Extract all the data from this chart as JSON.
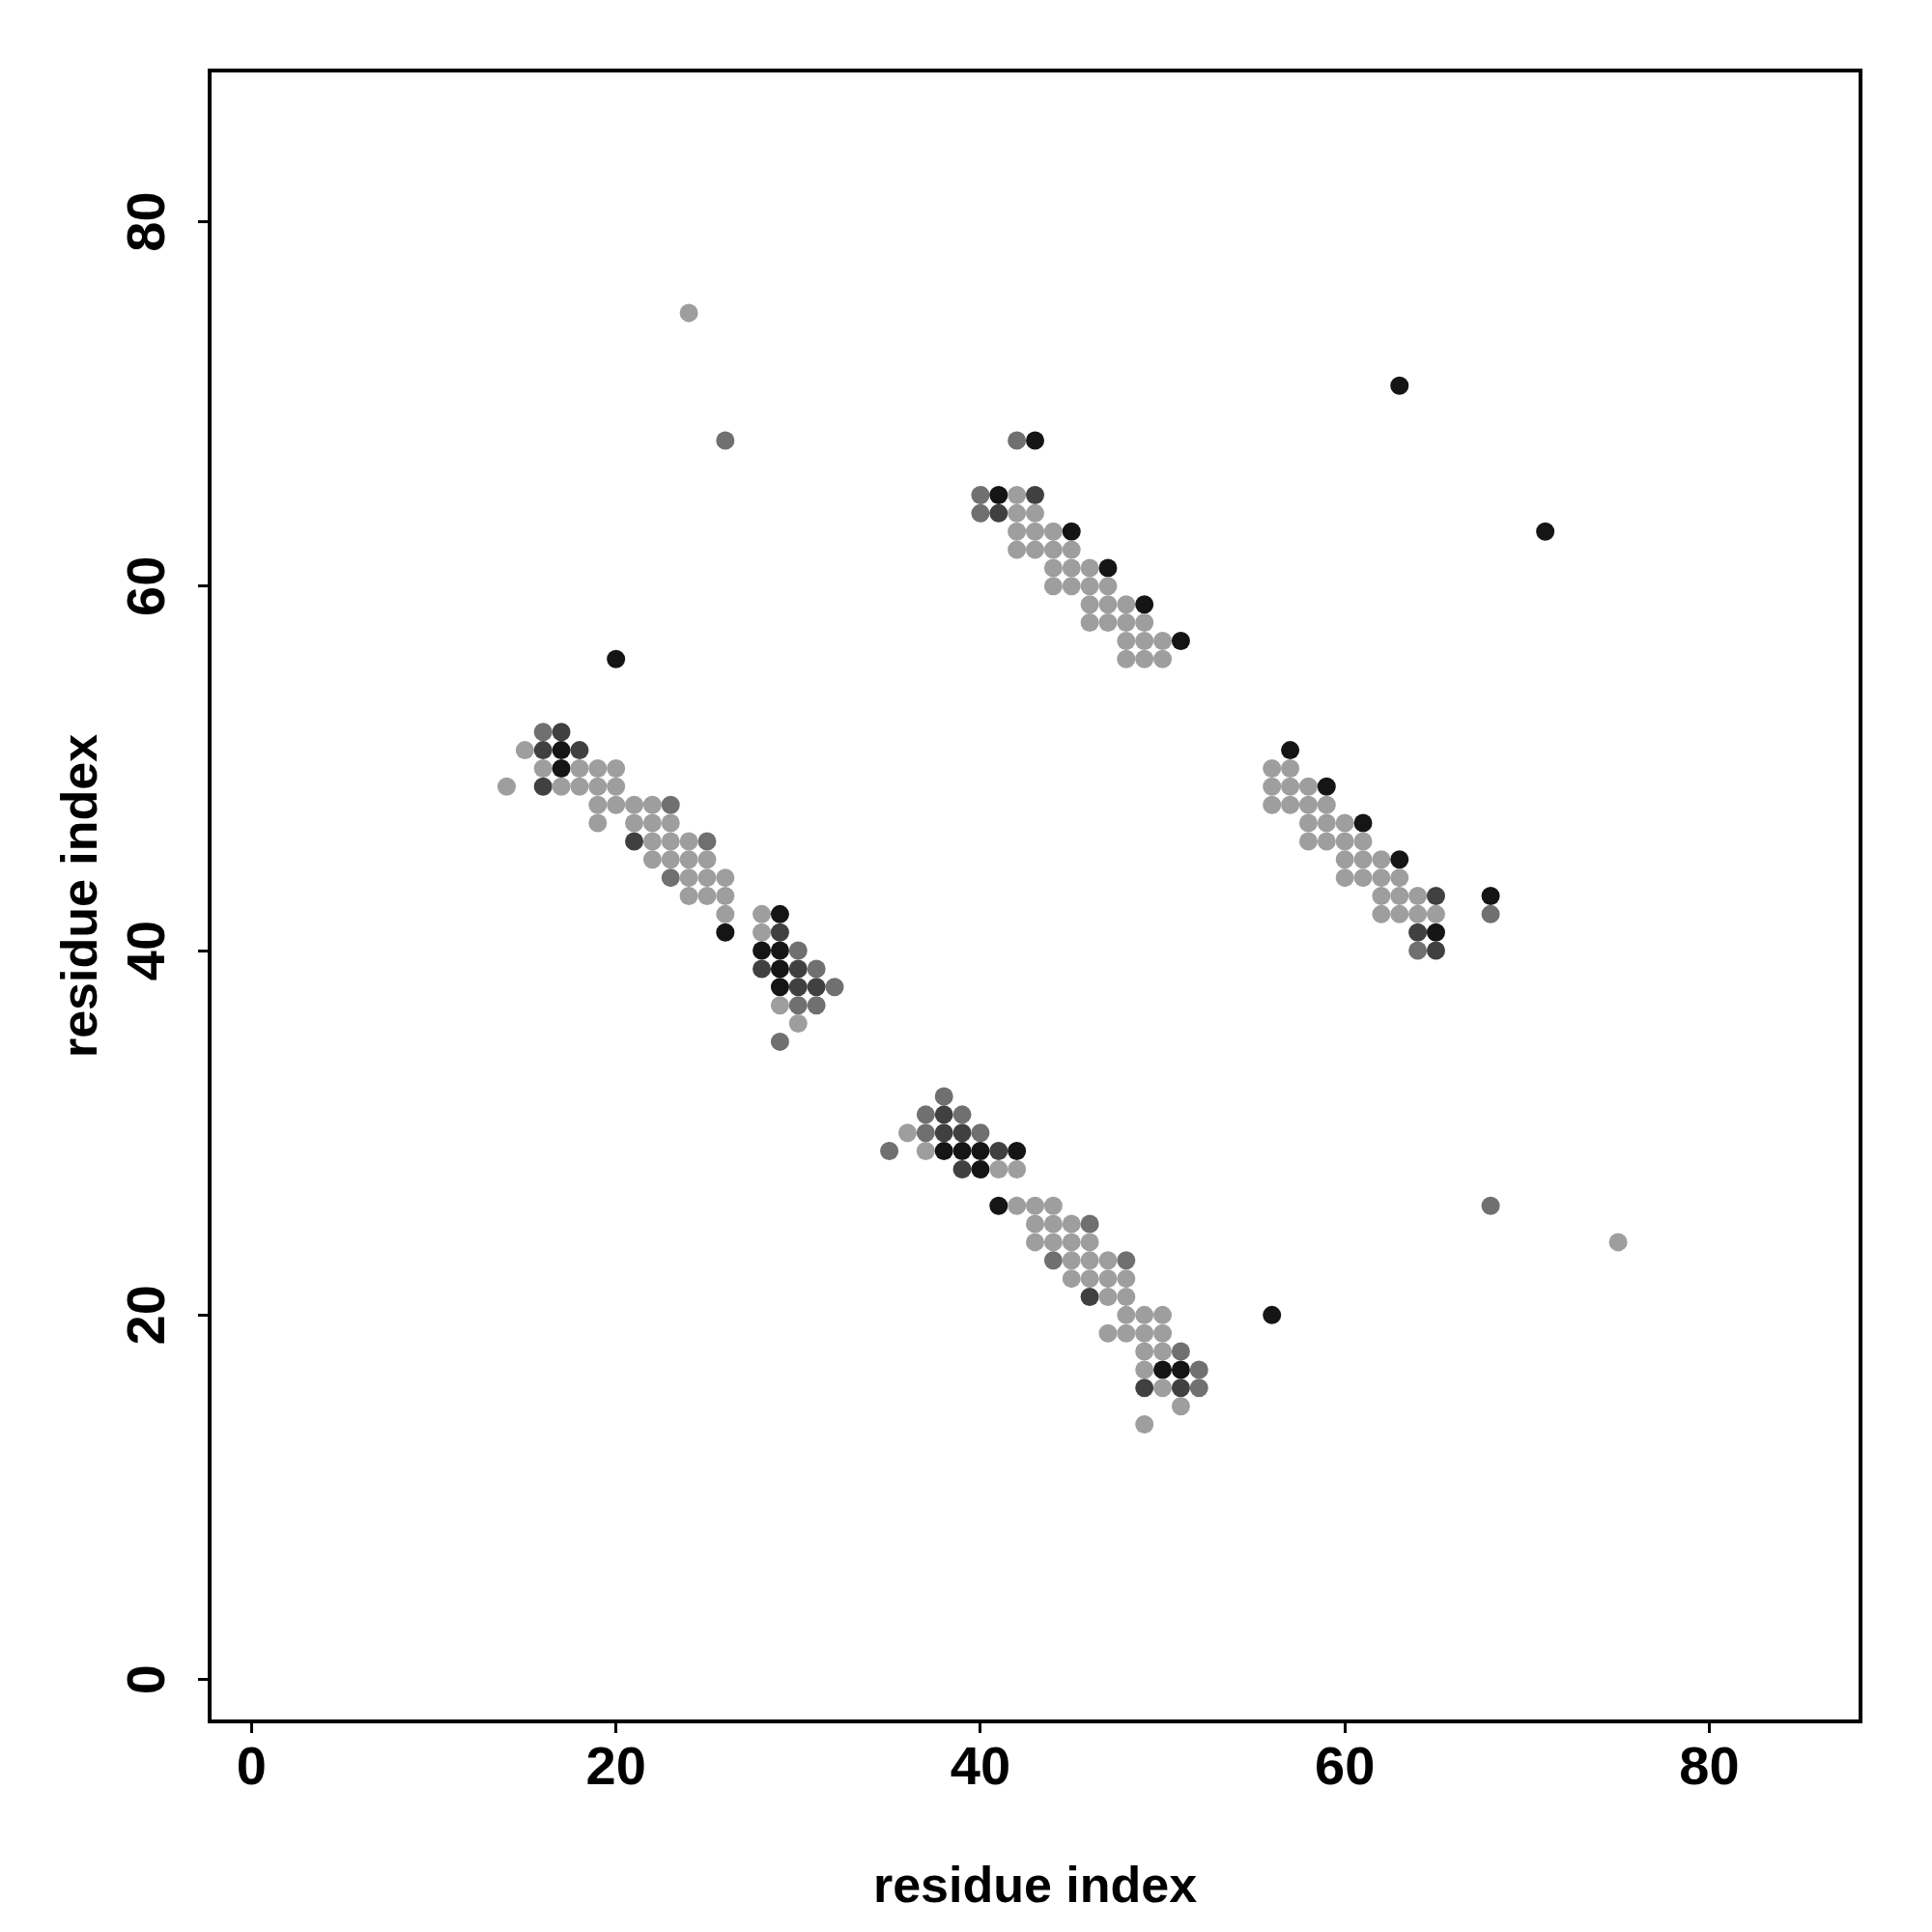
{
  "chart_data": {
    "type": "scatter",
    "xlabel": "residue index",
    "ylabel": "residue index",
    "xlim": [
      -2.3,
      88.3
    ],
    "ylim": [
      -2.3,
      88.3
    ],
    "xticks": [
      0,
      20,
      40,
      60,
      80
    ],
    "yticks": [
      0,
      20,
      40,
      60,
      80
    ],
    "grid": false,
    "legend": false,
    "marker": "circle",
    "series": [
      {
        "x": [
          16,
          17,
          15,
          16,
          17,
          18,
          16,
          17,
          18,
          19,
          20,
          14,
          16,
          17,
          18,
          19,
          20,
          19,
          20,
          21,
          22,
          23,
          19,
          21,
          22,
          23,
          21,
          22,
          23,
          24,
          25,
          22,
          23,
          24,
          25,
          23,
          24,
          25,
          26,
          24,
          25,
          26,
          26,
          28,
          29,
          26,
          28,
          29,
          28,
          29,
          30,
          28,
          29,
          30,
          31,
          29,
          30,
          31,
          32,
          29,
          30,
          31,
          30,
          29,
          24,
          26,
          20,
          63,
          71,
          56,
          68,
          75,
          42,
          43,
          40,
          41,
          42,
          43,
          40,
          41,
          42,
          43,
          42,
          43,
          44,
          45,
          42,
          43,
          44,
          45,
          44,
          45,
          46,
          47,
          44,
          45,
          46,
          47,
          46,
          47,
          48,
          49,
          46,
          47,
          48,
          49,
          48,
          49,
          50,
          51,
          48,
          49,
          50,
          57,
          56,
          57,
          56,
          57,
          58,
          59,
          56,
          57,
          58,
          59,
          58,
          59,
          60,
          61,
          58,
          59,
          60,
          61,
          60,
          61,
          62,
          63,
          60,
          61,
          62,
          63,
          62,
          63,
          64,
          65,
          68,
          62,
          63,
          64,
          65,
          68,
          64,
          65,
          64,
          65,
          38,
          37,
          38,
          39,
          36,
          37,
          38,
          39,
          40,
          35,
          37,
          38,
          39,
          40,
          41,
          42,
          39,
          40,
          41,
          42,
          41,
          42,
          43,
          44,
          43,
          44,
          45,
          46,
          43,
          44,
          45,
          46,
          44,
          45,
          46,
          47,
          48,
          45,
          46,
          47,
          48,
          46,
          47,
          48,
          48,
          49,
          50,
          47,
          48,
          49,
          50,
          49,
          50,
          51,
          49,
          50,
          51,
          52,
          49,
          50,
          51,
          52,
          51,
          49
        ],
        "values": [
          52,
          52,
          51,
          51,
          51,
          51,
          50,
          50,
          50,
          50,
          50,
          49,
          49,
          49,
          49,
          49,
          49,
          48,
          48,
          48,
          48,
          48,
          47,
          47,
          47,
          47,
          46,
          46,
          46,
          46,
          46,
          45,
          45,
          45,
          45,
          44,
          44,
          44,
          44,
          43,
          43,
          43,
          42,
          42,
          42,
          41,
          41,
          41,
          40,
          40,
          40,
          39,
          39,
          39,
          39,
          38,
          38,
          38,
          38,
          37,
          37,
          37,
          36,
          35,
          75,
          68,
          56,
          71,
          63,
          20,
          26,
          24,
          68,
          68,
          65,
          65,
          65,
          65,
          64,
          64,
          64,
          64,
          63,
          63,
          63,
          63,
          62,
          62,
          62,
          62,
          61,
          61,
          61,
          61,
          60,
          60,
          60,
          60,
          59,
          59,
          59,
          59,
          58,
          58,
          58,
          58,
          57,
          57,
          57,
          57,
          56,
          56,
          56,
          51,
          50,
          50,
          49,
          49,
          49,
          49,
          48,
          48,
          48,
          48,
          47,
          47,
          47,
          47,
          46,
          46,
          46,
          46,
          45,
          45,
          45,
          45,
          44,
          44,
          44,
          44,
          43,
          43,
          43,
          43,
          43,
          42,
          42,
          42,
          42,
          42,
          41,
          41,
          40,
          40,
          32,
          31,
          31,
          31,
          30,
          30,
          30,
          30,
          30,
          29,
          29,
          29,
          29,
          29,
          29,
          29,
          28,
          28,
          28,
          28,
          26,
          26,
          26,
          26,
          25,
          25,
          25,
          25,
          24,
          24,
          24,
          24,
          23,
          23,
          23,
          23,
          23,
          22,
          22,
          22,
          22,
          21,
          21,
          21,
          20,
          20,
          20,
          19,
          19,
          19,
          19,
          18,
          18,
          18,
          17,
          17,
          17,
          17,
          16,
          16,
          16,
          16,
          15,
          14
        ],
        "colors": [
          "#707070",
          "#404040",
          "#9e9e9e",
          "#404040",
          "#151515",
          "#404040",
          "#9e9e9e",
          "#151515",
          "#9e9e9e",
          "#9e9e9e",
          "#9e9e9e",
          "#9e9e9e",
          "#404040",
          "#9e9e9e",
          "#9e9e9e",
          "#9e9e9e",
          "#9e9e9e",
          "#9e9e9e",
          "#9e9e9e",
          "#9e9e9e",
          "#9e9e9e",
          "#707070",
          "#9e9e9e",
          "#9e9e9e",
          "#9e9e9e",
          "#9e9e9e",
          "#404040",
          "#9e9e9e",
          "#9e9e9e",
          "#9e9e9e",
          "#707070",
          "#9e9e9e",
          "#9e9e9e",
          "#9e9e9e",
          "#9e9e9e",
          "#707070",
          "#9e9e9e",
          "#9e9e9e",
          "#9e9e9e",
          "#9e9e9e",
          "#9e9e9e",
          "#9e9e9e",
          "#9e9e9e",
          "#9e9e9e",
          "#151515",
          "#151515",
          "#9e9e9e",
          "#404040",
          "#151515",
          "#151515",
          "#707070",
          "#404040",
          "#151515",
          "#404040",
          "#707070",
          "#151515",
          "#404040",
          "#404040",
          "#707070",
          "#9e9e9e",
          "#707070",
          "#707070",
          "#9e9e9e",
          "#707070",
          "#9e9e9e",
          "#707070",
          "#151515",
          "#151515",
          "#151515",
          "#151515",
          "#707070",
          "#9e9e9e",
          "#707070",
          "#151515",
          "#707070",
          "#151515",
          "#9e9e9e",
          "#404040",
          "#707070",
          "#404040",
          "#9e9e9e",
          "#9e9e9e",
          "#9e9e9e",
          "#9e9e9e",
          "#9e9e9e",
          "#151515",
          "#9e9e9e",
          "#9e9e9e",
          "#9e9e9e",
          "#9e9e9e",
          "#9e9e9e",
          "#9e9e9e",
          "#9e9e9e",
          "#151515",
          "#9e9e9e",
          "#9e9e9e",
          "#9e9e9e",
          "#9e9e9e",
          "#9e9e9e",
          "#9e9e9e",
          "#9e9e9e",
          "#151515",
          "#9e9e9e",
          "#9e9e9e",
          "#9e9e9e",
          "#9e9e9e",
          "#9e9e9e",
          "#9e9e9e",
          "#9e9e9e",
          "#151515",
          "#9e9e9e",
          "#9e9e9e",
          "#9e9e9e",
          "#151515",
          "#9e9e9e",
          "#9e9e9e",
          "#9e9e9e",
          "#9e9e9e",
          "#9e9e9e",
          "#151515",
          "#9e9e9e",
          "#9e9e9e",
          "#9e9e9e",
          "#9e9e9e",
          "#9e9e9e",
          "#9e9e9e",
          "#9e9e9e",
          "#151515",
          "#9e9e9e",
          "#9e9e9e",
          "#9e9e9e",
          "#9e9e9e",
          "#9e9e9e",
          "#9e9e9e",
          "#9e9e9e",
          "#151515",
          "#9e9e9e",
          "#9e9e9e",
          "#9e9e9e",
          "#9e9e9e",
          "#9e9e9e",
          "#9e9e9e",
          "#9e9e9e",
          "#404040",
          "#151515",
          "#9e9e9e",
          "#9e9e9e",
          "#9e9e9e",
          "#9e9e9e",
          "#707070",
          "#404040",
          "#151515",
          "#707070",
          "#404040",
          "#707070",
          "#707070",
          "#404040",
          "#707070",
          "#9e9e9e",
          "#707070",
          "#404040",
          "#404040",
          "#707070",
          "#707070",
          "#9e9e9e",
          "#151515",
          "#151515",
          "#151515",
          "#404040",
          "#151515",
          "#404040",
          "#151515",
          "#9e9e9e",
          "#9e9e9e",
          "#151515",
          "#9e9e9e",
          "#9e9e9e",
          "#9e9e9e",
          "#9e9e9e",
          "#9e9e9e",
          "#9e9e9e",
          "#707070",
          "#9e9e9e",
          "#9e9e9e",
          "#9e9e9e",
          "#9e9e9e",
          "#707070",
          "#9e9e9e",
          "#9e9e9e",
          "#9e9e9e",
          "#707070",
          "#9e9e9e",
          "#9e9e9e",
          "#9e9e9e",
          "#9e9e9e",
          "#404040",
          "#9e9e9e",
          "#9e9e9e",
          "#9e9e9e",
          "#9e9e9e",
          "#9e9e9e",
          "#9e9e9e",
          "#9e9e9e",
          "#9e9e9e",
          "#9e9e9e",
          "#9e9e9e",
          "#9e9e9e",
          "#707070",
          "#9e9e9e",
          "#151515",
          "#151515",
          "#707070",
          "#404040",
          "#9e9e9e",
          "#404040",
          "#707070",
          "#9e9e9e",
          "#9e9e9e"
        ]
      }
    ]
  }
}
